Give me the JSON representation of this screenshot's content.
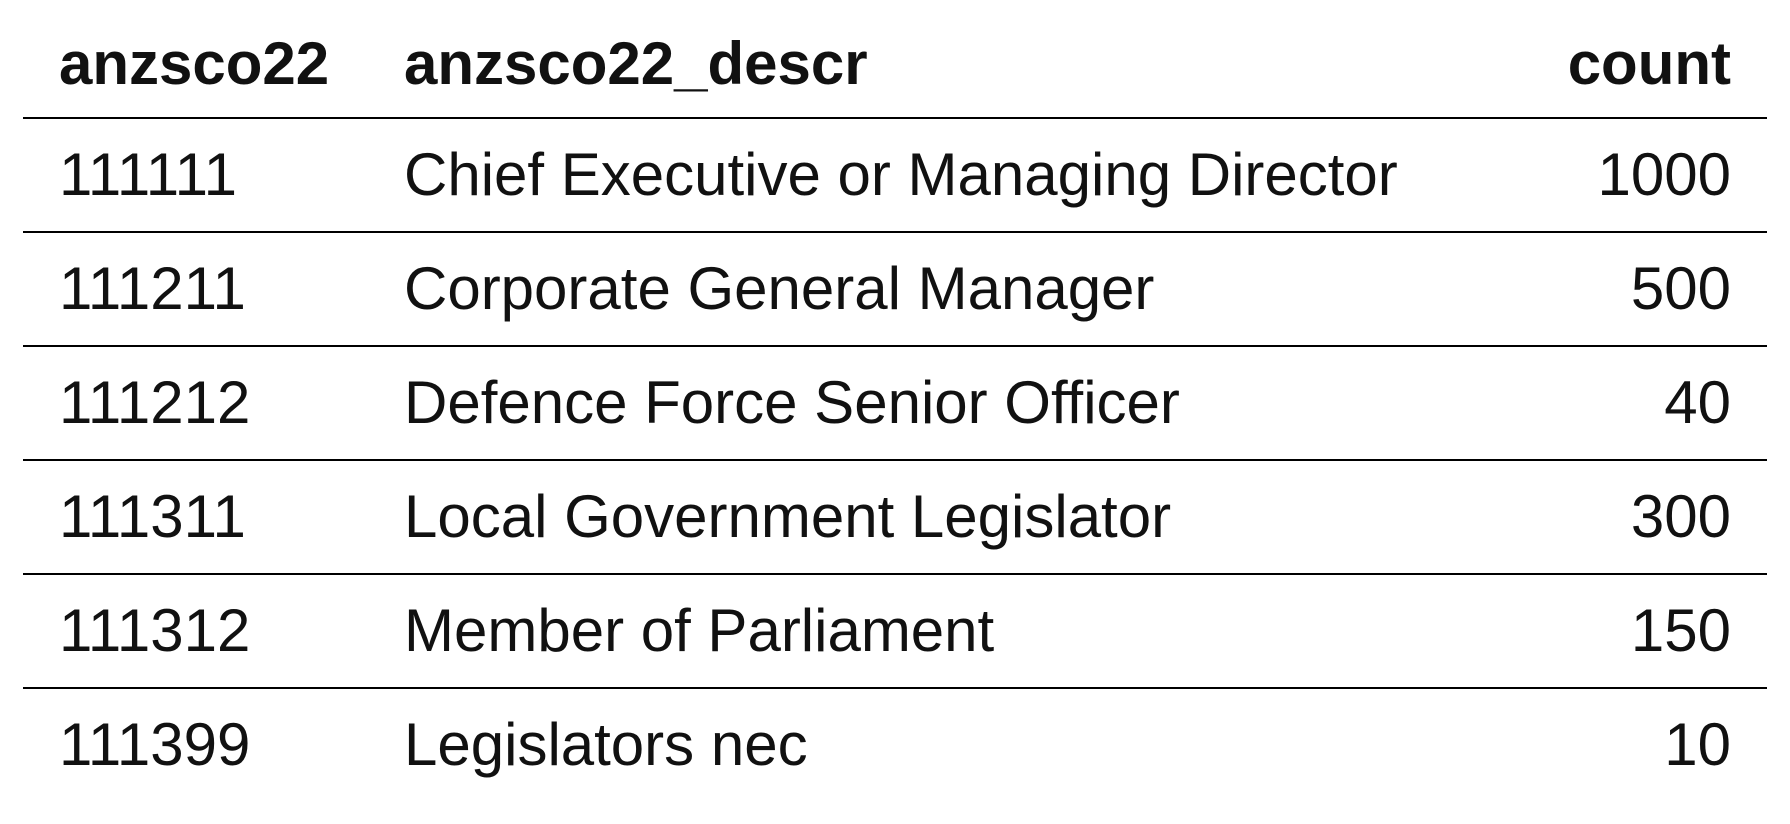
{
  "table": {
    "columns": [
      "anzsco22",
      "anzsco22_descr",
      "count"
    ],
    "rows": [
      [
        "111111",
        "Chief Executive or Managing Director",
        "1000"
      ],
      [
        "111211",
        "Corporate General Manager",
        "500"
      ],
      [
        "111212",
        "Defence Force Senior Officer",
        "40"
      ],
      [
        "111311",
        "Local Government Legislator",
        "300"
      ],
      [
        "111312",
        "Member of Parliament",
        "150"
      ],
      [
        "111399",
        "Legislators nec",
        "10"
      ]
    ]
  }
}
